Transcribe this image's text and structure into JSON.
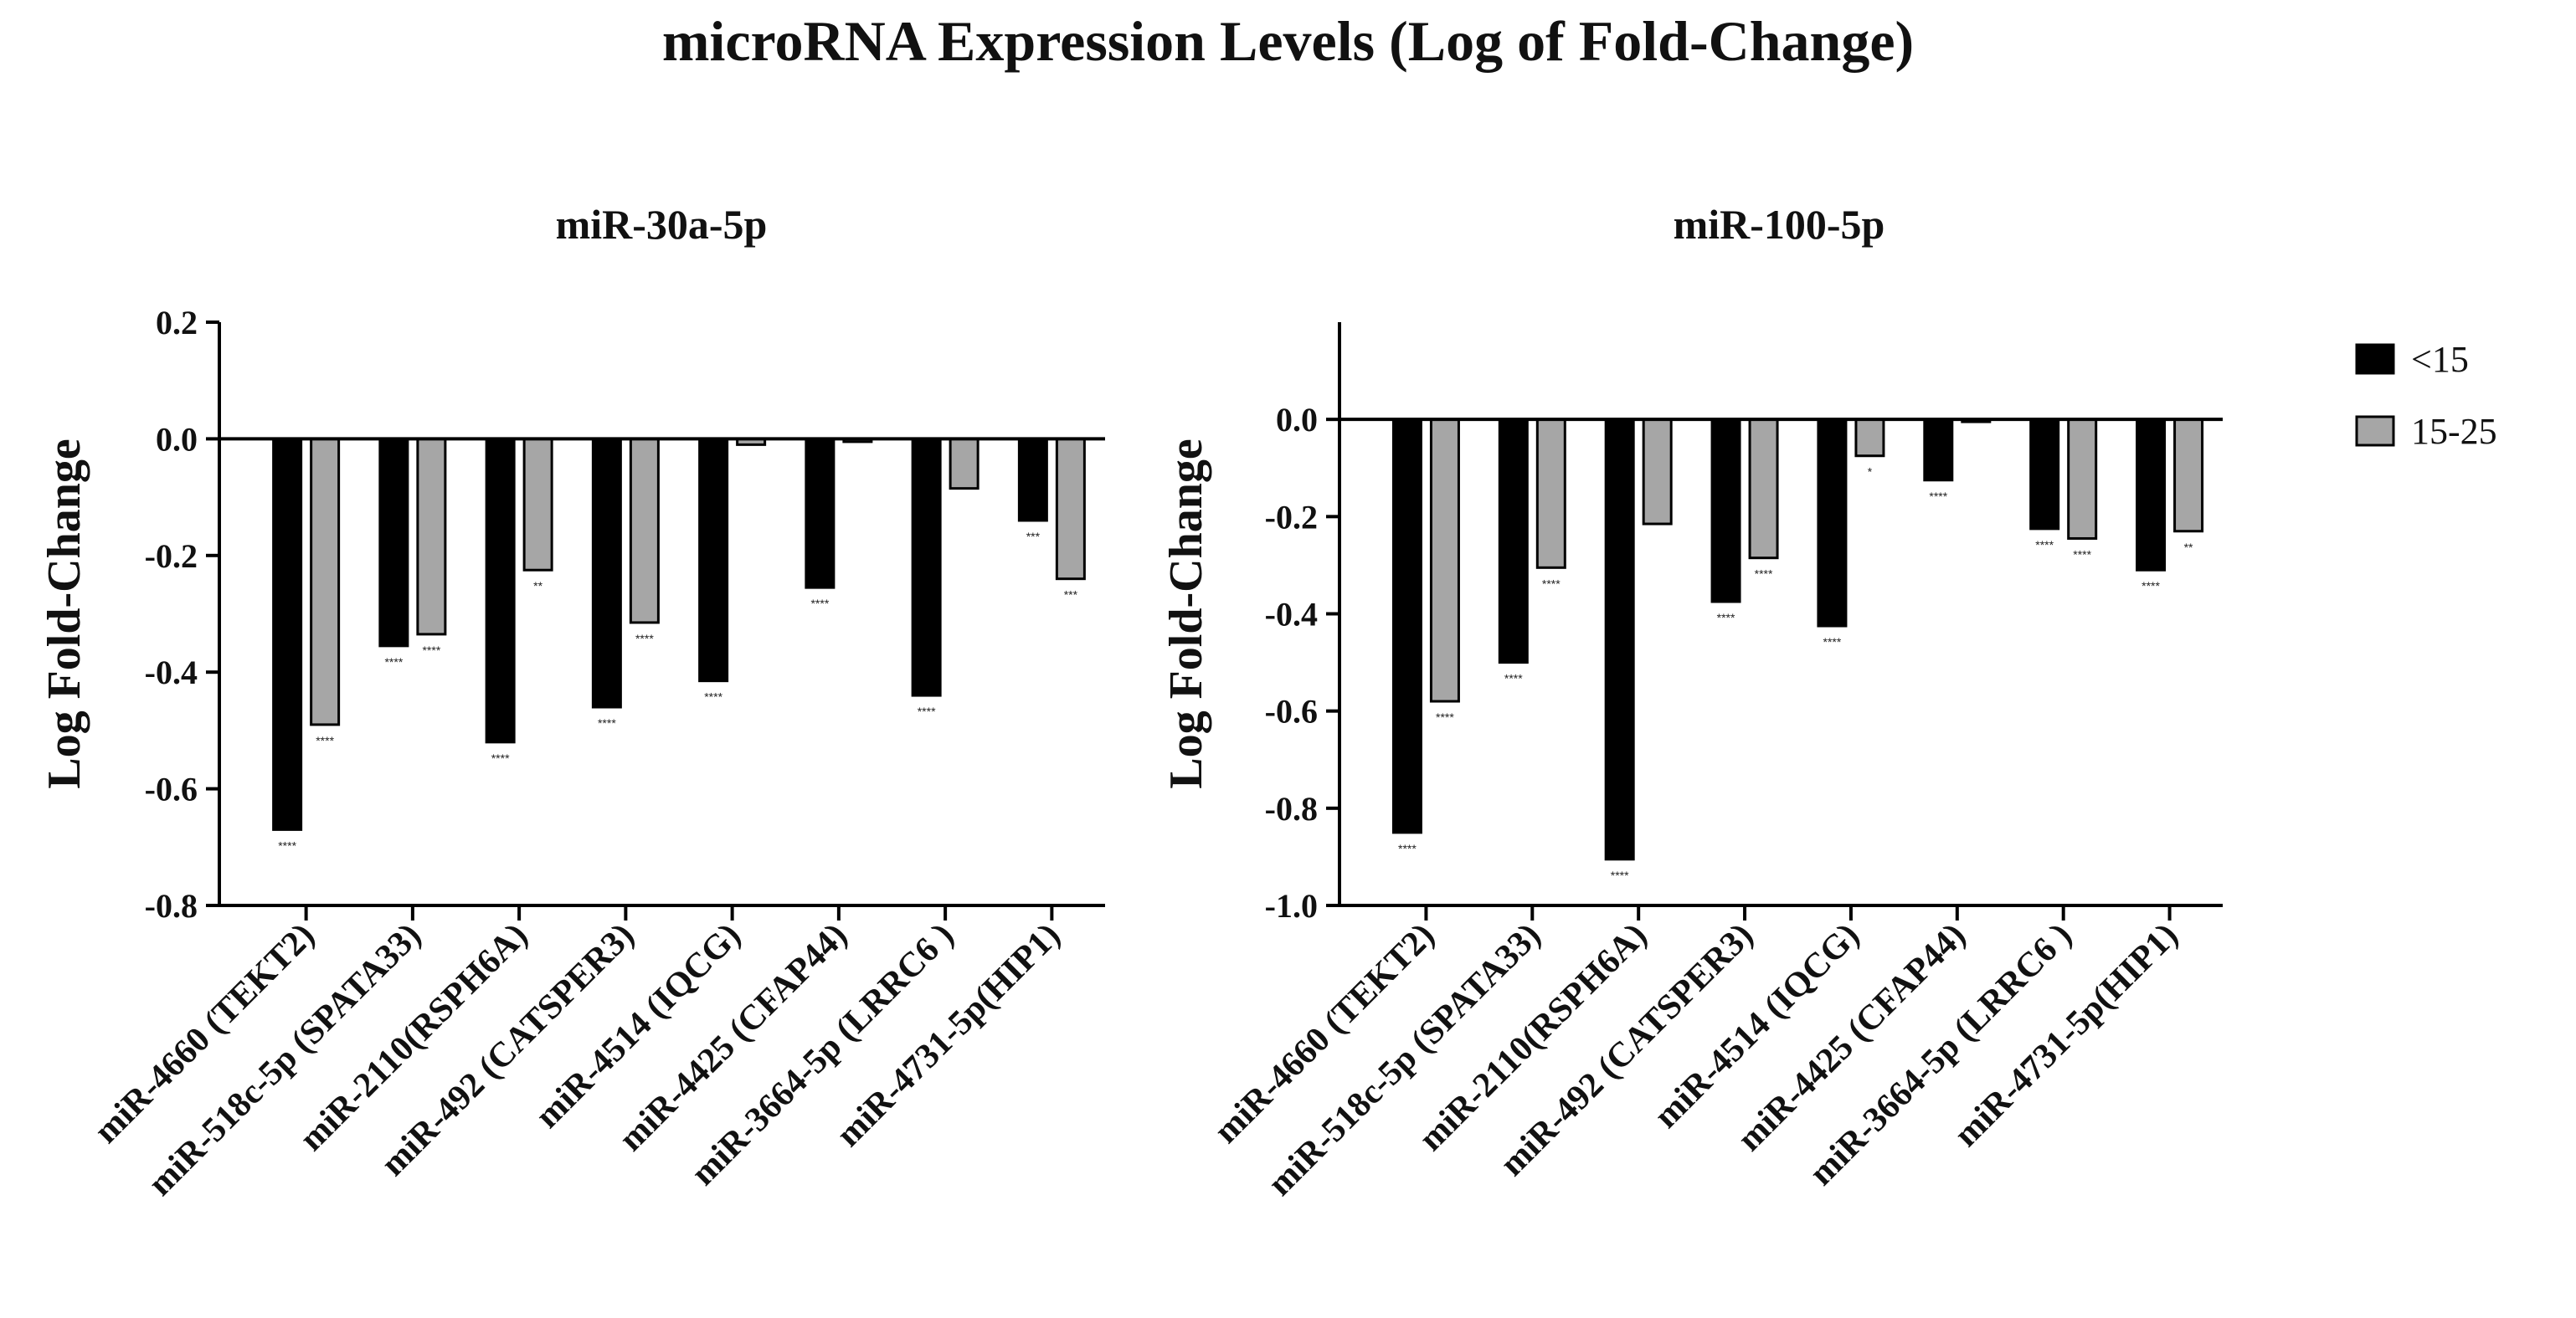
{
  "title": "microRNA Expression Levels (Log of Fold-Change)",
  "legend": [
    {
      "label": "<15",
      "color": "#000000"
    },
    {
      "label": "15-25",
      "color": "#a6a6a6"
    }
  ],
  "chart_data": [
    {
      "type": "bar",
      "title": "miR-30a-5p",
      "xlabel": "",
      "ylabel": "Log Fold-Change",
      "ylim": [
        -0.8,
        0.2
      ],
      "yticks": [
        0.2,
        0.0,
        -0.2,
        -0.4,
        -0.6,
        -0.8
      ],
      "ytick_labels": [
        "0.2",
        "0.0",
        "-0.2",
        "-0.4",
        "-0.6",
        "-0.8"
      ],
      "categories": [
        "miR-4660 (TEKT2)",
        "miR-518c-5p (SPATA33)",
        "miR-2110(RSPH6A)",
        "miR-492 (CATSPER3)",
        "miR-4514 (IQCG)",
        "miR-4425 (CFAP44)",
        "miR-3664-5p (LRRC6 )",
        "miR-4731-5p(HIP1)"
      ],
      "series": [
        {
          "name": "<15",
          "values": [
            -0.67,
            -0.355,
            -0.52,
            -0.46,
            -0.415,
            -0.255,
            -0.44,
            -0.14
          ],
          "annotations": [
            "****",
            "****",
            "****",
            "****",
            "****",
            "****",
            "****",
            "***"
          ]
        },
        {
          "name": "15-25",
          "values": [
            -0.49,
            -0.335,
            -0.225,
            -0.315,
            -0.01,
            -0.005,
            -0.085,
            -0.24
          ],
          "annotations": [
            "****",
            "****",
            "**",
            "****",
            "",
            "",
            "",
            "***"
          ]
        }
      ]
    },
    {
      "type": "bar",
      "title": "miR-100-5p",
      "xlabel": "",
      "ylabel": "Log Fold-Change",
      "ylim": [
        -1.0,
        0.2
      ],
      "yticks": [
        0.0,
        -0.2,
        -0.4,
        -0.6,
        -0.8,
        -1.0
      ],
      "ytick_labels": [
        "0.0",
        "-0.2",
        "-0.4",
        "-0.6",
        "-0.8",
        "-1.0"
      ],
      "categories": [
        "miR-4660 (TEKT2)",
        "miR-518c-5p (SPATA33)",
        "miR-2110(RSPH6A)",
        "miR-492 (CATSPER3)",
        "miR-4514 (IQCG)",
        "miR-4425 (CFAP44)",
        "miR-3664-5p (LRRC6 )",
        "miR-4731-5p(HIP1)"
      ],
      "series": [
        {
          "name": "<15",
          "values": [
            -0.85,
            -0.5,
            -0.905,
            -0.375,
            -0.425,
            -0.125,
            -0.225,
            -0.31
          ],
          "annotations": [
            "****",
            "****",
            "****",
            "****",
            "****",
            "****",
            "****",
            "****"
          ]
        },
        {
          "name": "15-25",
          "values": [
            -0.58,
            -0.305,
            -0.215,
            -0.285,
            -0.075,
            -0.005,
            -0.245,
            -0.23
          ],
          "annotations": [
            "****",
            "****",
            "",
            "****",
            "*",
            "",
            "****",
            "**"
          ]
        }
      ]
    }
  ]
}
